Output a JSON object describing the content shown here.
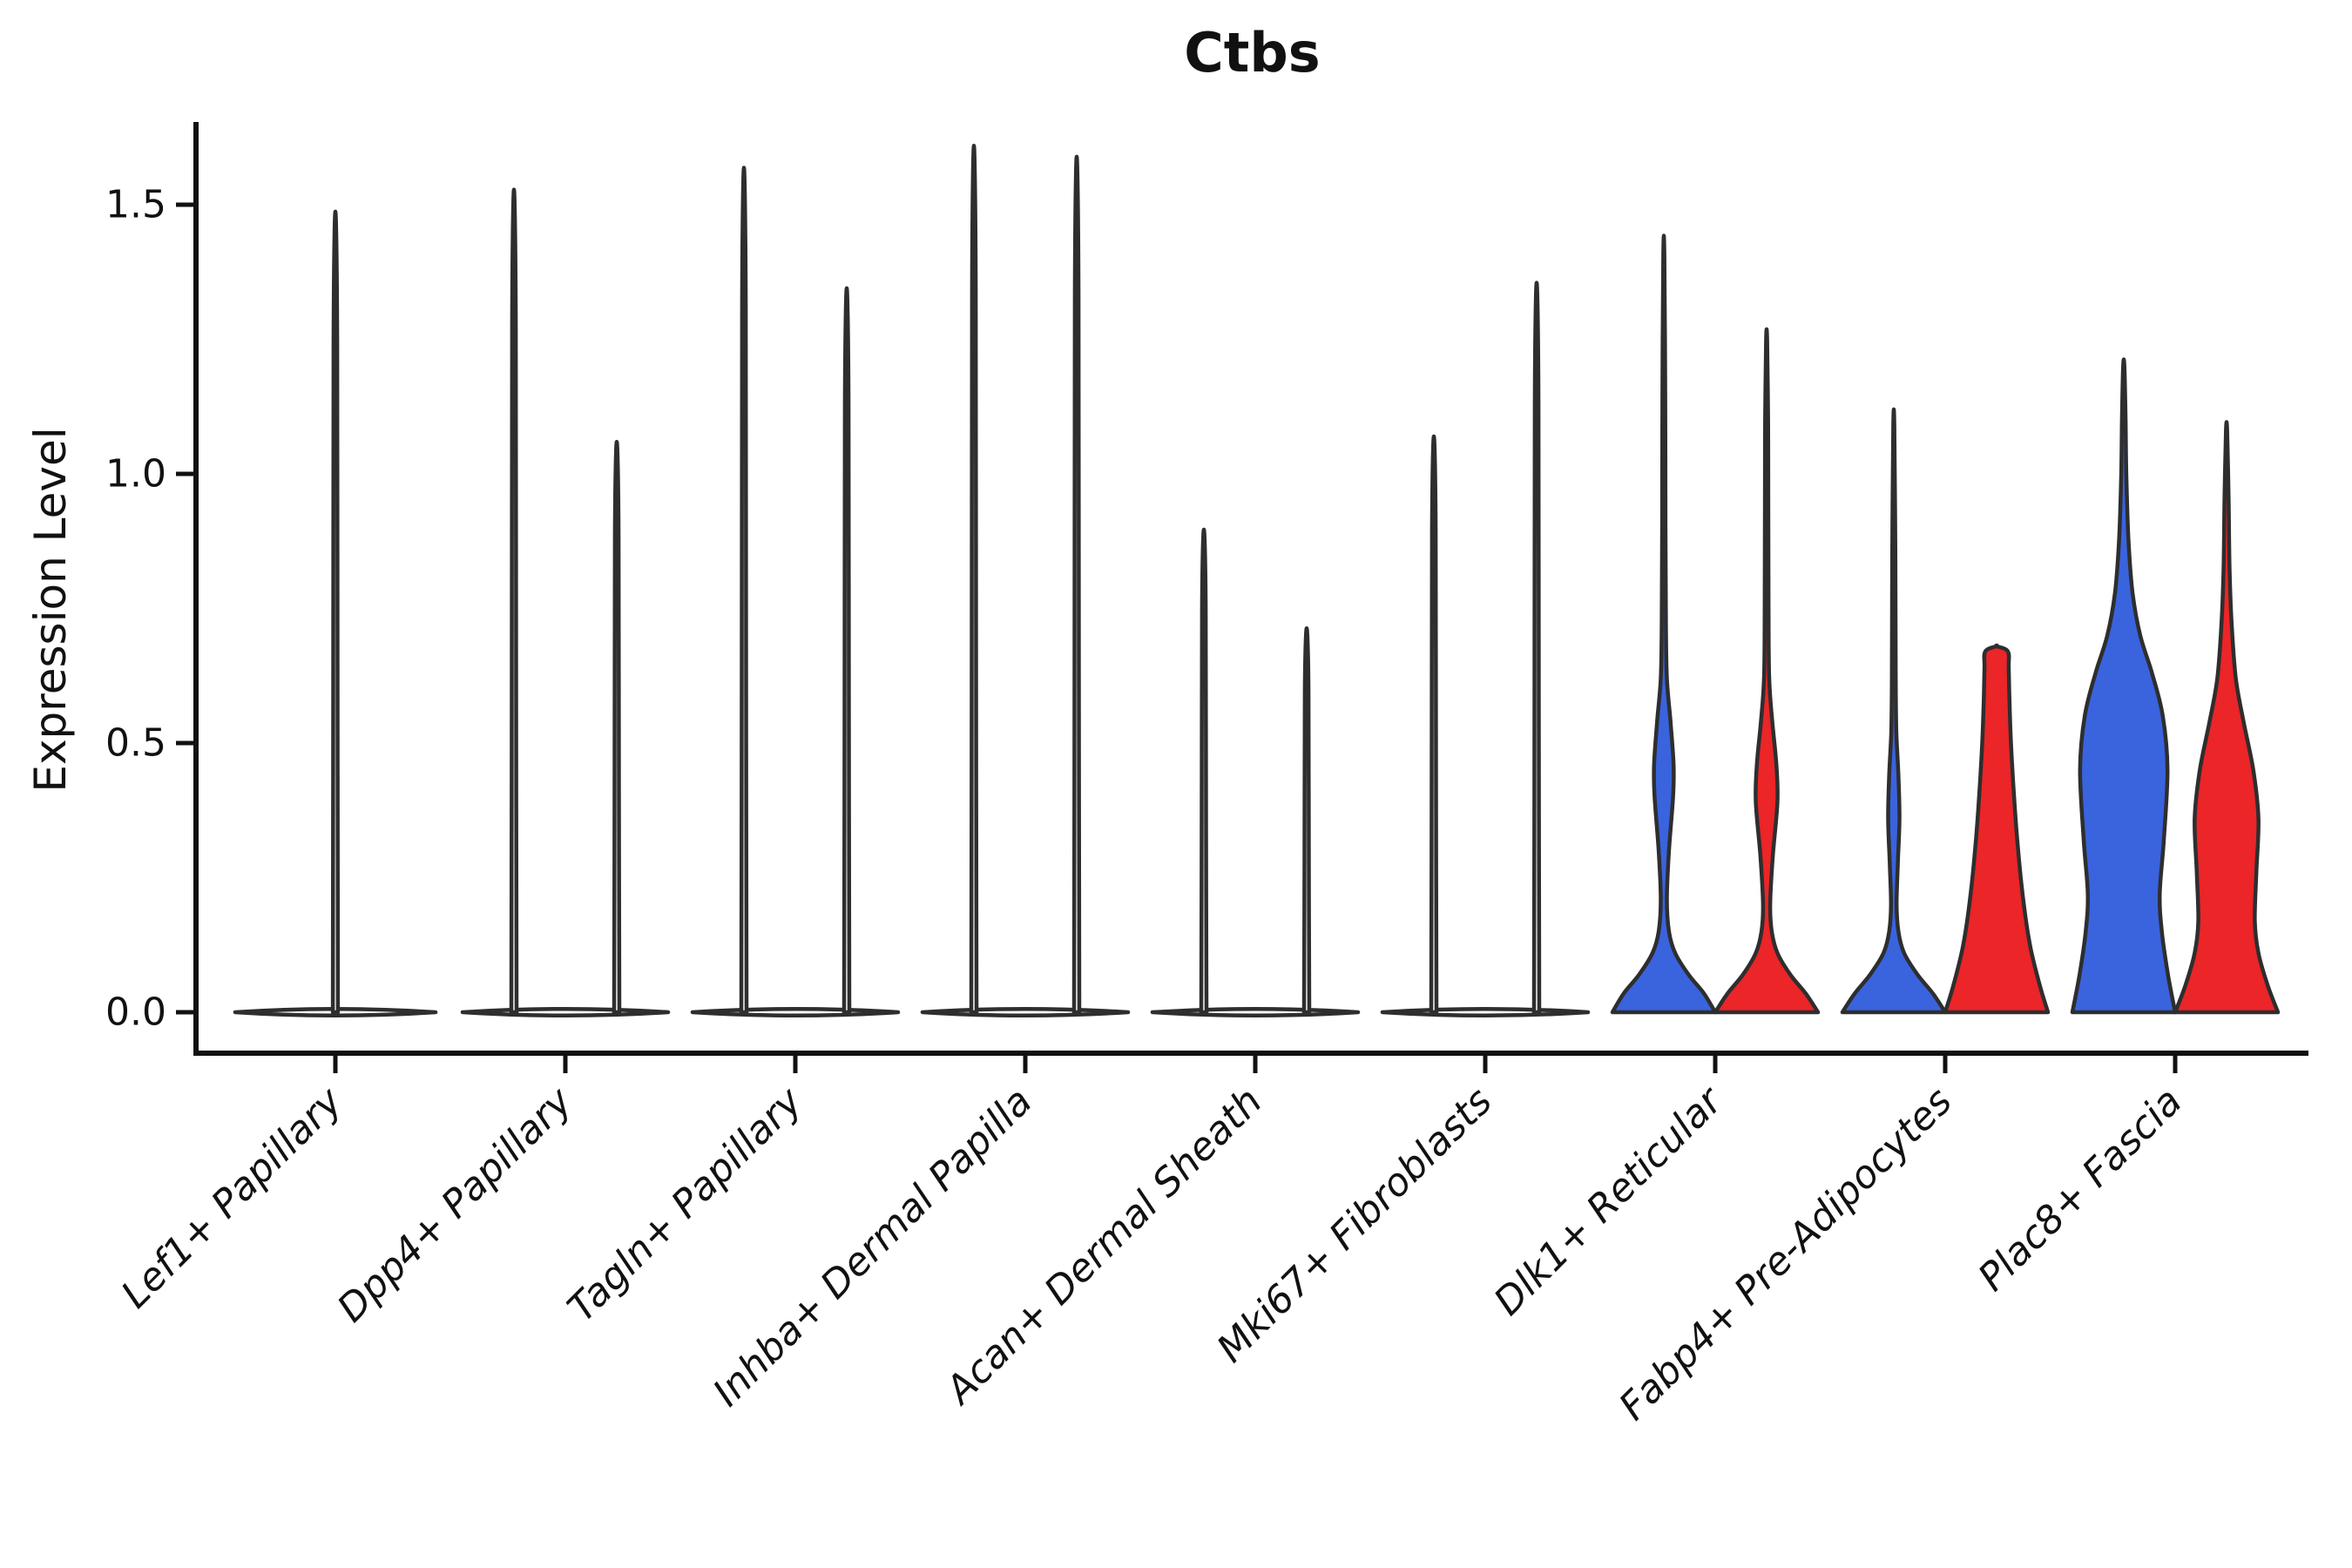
{
  "title": "Ctbs",
  "axes": {
    "ylabel": "Expression Level"
  },
  "chart_data": {
    "type": "violin",
    "title": "Ctbs",
    "xlabel": "",
    "ylabel": "Expression Level",
    "ylim": [
      -0.08,
      1.65
    ],
    "yticks": [
      0.0,
      0.5,
      1.0,
      1.5
    ],
    "ytick_labels": [
      "0.0",
      "0.5",
      "1.0",
      "1.5"
    ],
    "grid": false,
    "legend_position": "none",
    "outline_color": "#2E2E2E",
    "palette": {
      "plain": "#FFFFFF",
      "blue": "#3A63DE",
      "red": "#EB2528"
    },
    "categories": [
      {
        "label": "Lef1+ Papillary",
        "base_half": 1.95,
        "violins": [
          {
            "fill": "plain",
            "offset": 0,
            "max": 1.46,
            "profile": "stem"
          }
        ]
      },
      {
        "label": "Dpp4+ Papillary",
        "base_half": 2.0,
        "violins": [
          {
            "fill": "plain",
            "offset": -1,
            "max": 1.5,
            "profile": "stem"
          },
          {
            "fill": "plain",
            "offset": 1,
            "max": 1.04,
            "profile": "stem"
          }
        ]
      },
      {
        "label": "Tagln+ Papillary",
        "base_half": 2.0,
        "violins": [
          {
            "fill": "plain",
            "offset": -1,
            "max": 1.54,
            "profile": "stem"
          },
          {
            "fill": "plain",
            "offset": 1,
            "max": 1.32,
            "profile": "stem"
          }
        ]
      },
      {
        "label": "Inhba+ Dermal Papilla",
        "base_half": 2.0,
        "violins": [
          {
            "fill": "plain",
            "offset": -1,
            "max": 1.58,
            "profile": "stem"
          },
          {
            "fill": "plain",
            "offset": 1,
            "max": 1.56,
            "profile": "stem"
          }
        ]
      },
      {
        "label": "Acan+ Dermal Sheath",
        "base_half": 2.0,
        "violins": [
          {
            "fill": "plain",
            "offset": -1,
            "max": 0.88,
            "profile": "stem"
          },
          {
            "fill": "plain",
            "offset": 1,
            "max": 0.7,
            "profile": "stem"
          }
        ]
      },
      {
        "label": "Mki67+ Fibroblasts",
        "base_half": 2.0,
        "violins": [
          {
            "fill": "plain",
            "offset": -1,
            "max": 1.05,
            "profile": "stem"
          },
          {
            "fill": "plain",
            "offset": 1,
            "max": 1.33,
            "profile": "stem"
          }
        ]
      },
      {
        "label": "Dlk1+ Reticular",
        "base_half": 0,
        "violins": [
          {
            "fill": "blue",
            "offset": -1,
            "max": 1.41,
            "profile": [
              [
                0,
                1.0
              ],
              [
                0.035,
                0.78
              ],
              [
                0.07,
                0.48
              ],
              [
                0.11,
                0.22
              ],
              [
                0.15,
                0.1
              ],
              [
                0.21,
                0.06
              ],
              [
                0.3,
                0.1
              ],
              [
                0.4,
                0.18
              ],
              [
                0.46,
                0.19
              ],
              [
                0.54,
                0.13
              ],
              [
                0.62,
                0.06
              ],
              [
                0.72,
                0.04
              ],
              [
                0.9,
                0.032
              ],
              [
                1.15,
                0.027
              ],
              [
                1.41,
                0.01
              ]
            ]
          },
          {
            "fill": "red",
            "offset": 1,
            "max": 1.25,
            "profile": [
              [
                0,
                1.0
              ],
              [
                0.035,
                0.76
              ],
              [
                0.07,
                0.46
              ],
              [
                0.11,
                0.21
              ],
              [
                0.15,
                0.1
              ],
              [
                0.2,
                0.07
              ],
              [
                0.29,
                0.12
              ],
              [
                0.39,
                0.21
              ],
              [
                0.46,
                0.19
              ],
              [
                0.54,
                0.11
              ],
              [
                0.62,
                0.05
              ],
              [
                0.75,
                0.038
              ],
              [
                0.95,
                0.032
              ],
              [
                1.1,
                0.028
              ],
              [
                1.25,
                0.01
              ]
            ]
          }
        ]
      },
      {
        "label": "Fabp4+ Pre-Adipocytes",
        "base_half": 0,
        "violins": [
          {
            "fill": "blue",
            "offset": -1,
            "max": 1.09,
            "profile": [
              [
                0,
                1.0
              ],
              [
                0.035,
                0.76
              ],
              [
                0.07,
                0.46
              ],
              [
                0.11,
                0.2
              ],
              [
                0.15,
                0.09
              ],
              [
                0.2,
                0.055
              ],
              [
                0.28,
                0.08
              ],
              [
                0.36,
                0.11
              ],
              [
                0.44,
                0.09
              ],
              [
                0.52,
                0.05
              ],
              [
                0.62,
                0.038
              ],
              [
                0.85,
                0.03
              ],
              [
                1.09,
                0.01
              ]
            ]
          },
          {
            "fill": "red",
            "offset": 1,
            "max": 0.68,
            "profile": [
              [
                0,
                1.0
              ],
              [
                0.05,
                0.84
              ],
              [
                0.12,
                0.66
              ],
              [
                0.2,
                0.53
              ],
              [
                0.3,
                0.42
              ],
              [
                0.4,
                0.34
              ],
              [
                0.5,
                0.28
              ],
              [
                0.58,
                0.25
              ],
              [
                0.64,
                0.235
              ],
              [
                0.67,
                0.22
              ],
              [
                0.68,
                0.0
              ]
            ]
          }
        ]
      },
      {
        "label": "Plac8+ Fascia",
        "base_half": 0,
        "violins": [
          {
            "fill": "blue",
            "offset": -1,
            "max": 1.2,
            "profile": [
              [
                0,
                1.0
              ],
              [
                0.07,
                0.86
              ],
              [
                0.15,
                0.74
              ],
              [
                0.22,
                0.7
              ],
              [
                0.32,
                0.78
              ],
              [
                0.45,
                0.85
              ],
              [
                0.55,
                0.76
              ],
              [
                0.63,
                0.55
              ],
              [
                0.7,
                0.32
              ],
              [
                0.78,
                0.17
              ],
              [
                0.88,
                0.09
              ],
              [
                1.0,
                0.05
              ],
              [
                1.1,
                0.035
              ],
              [
                1.2,
                0.012
              ]
            ]
          },
          {
            "fill": "red",
            "offset": 1,
            "max": 1.08,
            "profile": [
              [
                0,
                1.0
              ],
              [
                0.05,
                0.8
              ],
              [
                0.11,
                0.62
              ],
              [
                0.17,
                0.55
              ],
              [
                0.26,
                0.58
              ],
              [
                0.36,
                0.62
              ],
              [
                0.45,
                0.52
              ],
              [
                0.54,
                0.33
              ],
              [
                0.62,
                0.18
              ],
              [
                0.72,
                0.1
              ],
              [
                0.82,
                0.06
              ],
              [
                0.95,
                0.04
              ],
              [
                1.08,
                0.012
              ]
            ]
          }
        ]
      }
    ]
  }
}
